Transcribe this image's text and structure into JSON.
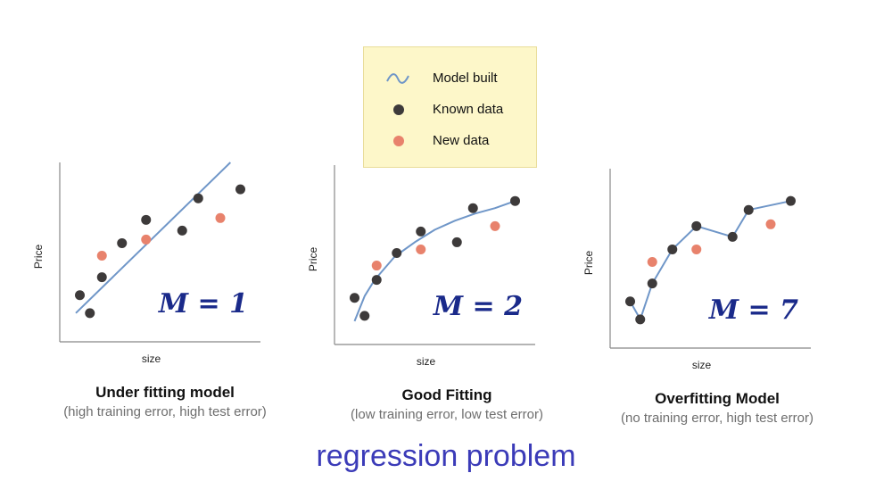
{
  "legend": {
    "items": [
      {
        "label": "Model built",
        "symbol": "wave",
        "color": "#6f96c8"
      },
      {
        "label": "Known data",
        "symbol": "dot",
        "color": "#3d3a3a"
      },
      {
        "label": "New data",
        "symbol": "dot",
        "color": "#e8826c"
      }
    ]
  },
  "footer": {
    "title": "regression problem"
  },
  "colors": {
    "model": "#6f96c8",
    "known": "#3d3a3a",
    "new": "#e8826c",
    "axis": "#888888",
    "m_label": "#1a2a8a"
  },
  "chart_data": [
    {
      "type": "scatter",
      "title": "Under fitting model",
      "subtitle": "(high training error, high test error)",
      "xlabel": "size",
      "ylabel": "Price",
      "model_label": "M = 1",
      "xlim": [
        0,
        10
      ],
      "ylim": [
        0,
        10
      ],
      "known": [
        [
          1.0,
          2.6
        ],
        [
          1.5,
          1.6
        ],
        [
          2.1,
          3.6
        ],
        [
          3.1,
          5.5
        ],
        [
          4.3,
          6.8
        ],
        [
          6.1,
          6.2
        ],
        [
          6.9,
          8.0
        ],
        [
          9.0,
          8.5
        ]
      ],
      "new": [
        [
          2.1,
          4.8
        ],
        [
          4.3,
          5.7
        ],
        [
          8.0,
          6.9
        ]
      ],
      "model_curve": [
        [
          0.8,
          1.6
        ],
        [
          8.5,
          10.0
        ]
      ]
    },
    {
      "type": "scatter",
      "title": "Good Fitting",
      "subtitle": "(low training error, low test error)",
      "xlabel": "size",
      "ylabel": "Price",
      "model_label": "M = 2",
      "xlim": [
        0,
        10
      ],
      "ylim": [
        0,
        10
      ],
      "known": [
        [
          1.0,
          2.6
        ],
        [
          1.5,
          1.6
        ],
        [
          2.1,
          3.6
        ],
        [
          3.1,
          5.1
        ],
        [
          4.3,
          6.3
        ],
        [
          6.1,
          5.7
        ],
        [
          6.9,
          7.6
        ],
        [
          9.0,
          8.0
        ]
      ],
      "new": [
        [
          2.1,
          4.4
        ],
        [
          4.3,
          5.3
        ],
        [
          8.0,
          6.6
        ]
      ],
      "model_curve": [
        [
          1.0,
          1.3
        ],
        [
          1.5,
          2.7
        ],
        [
          2.0,
          3.6
        ],
        [
          3.0,
          4.9
        ],
        [
          4.0,
          5.7
        ],
        [
          5.0,
          6.4
        ],
        [
          6.0,
          6.9
        ],
        [
          7.0,
          7.3
        ],
        [
          8.0,
          7.6
        ],
        [
          9.0,
          8.0
        ]
      ]
    },
    {
      "type": "scatter",
      "title": "Overfitting Model",
      "subtitle": "(no training error, high test error)",
      "xlabel": "size",
      "ylabel": "Price",
      "model_label": "M = 7",
      "xlim": [
        0,
        10
      ],
      "ylim": [
        0,
        10
      ],
      "known": [
        [
          1.0,
          2.6
        ],
        [
          1.5,
          1.6
        ],
        [
          2.1,
          3.6
        ],
        [
          3.1,
          5.5
        ],
        [
          4.3,
          6.8
        ],
        [
          6.1,
          6.2
        ],
        [
          6.9,
          7.7
        ],
        [
          9.0,
          8.2
        ]
      ],
      "new": [
        [
          2.1,
          4.8
        ],
        [
          4.3,
          5.5
        ],
        [
          8.0,
          6.9
        ]
      ],
      "model_curve": [
        [
          1.0,
          2.6
        ],
        [
          1.5,
          1.6
        ],
        [
          2.1,
          3.6
        ],
        [
          3.1,
          5.5
        ],
        [
          4.3,
          6.8
        ],
        [
          6.1,
          6.2
        ],
        [
          6.9,
          7.7
        ],
        [
          9.0,
          8.2
        ]
      ]
    }
  ]
}
